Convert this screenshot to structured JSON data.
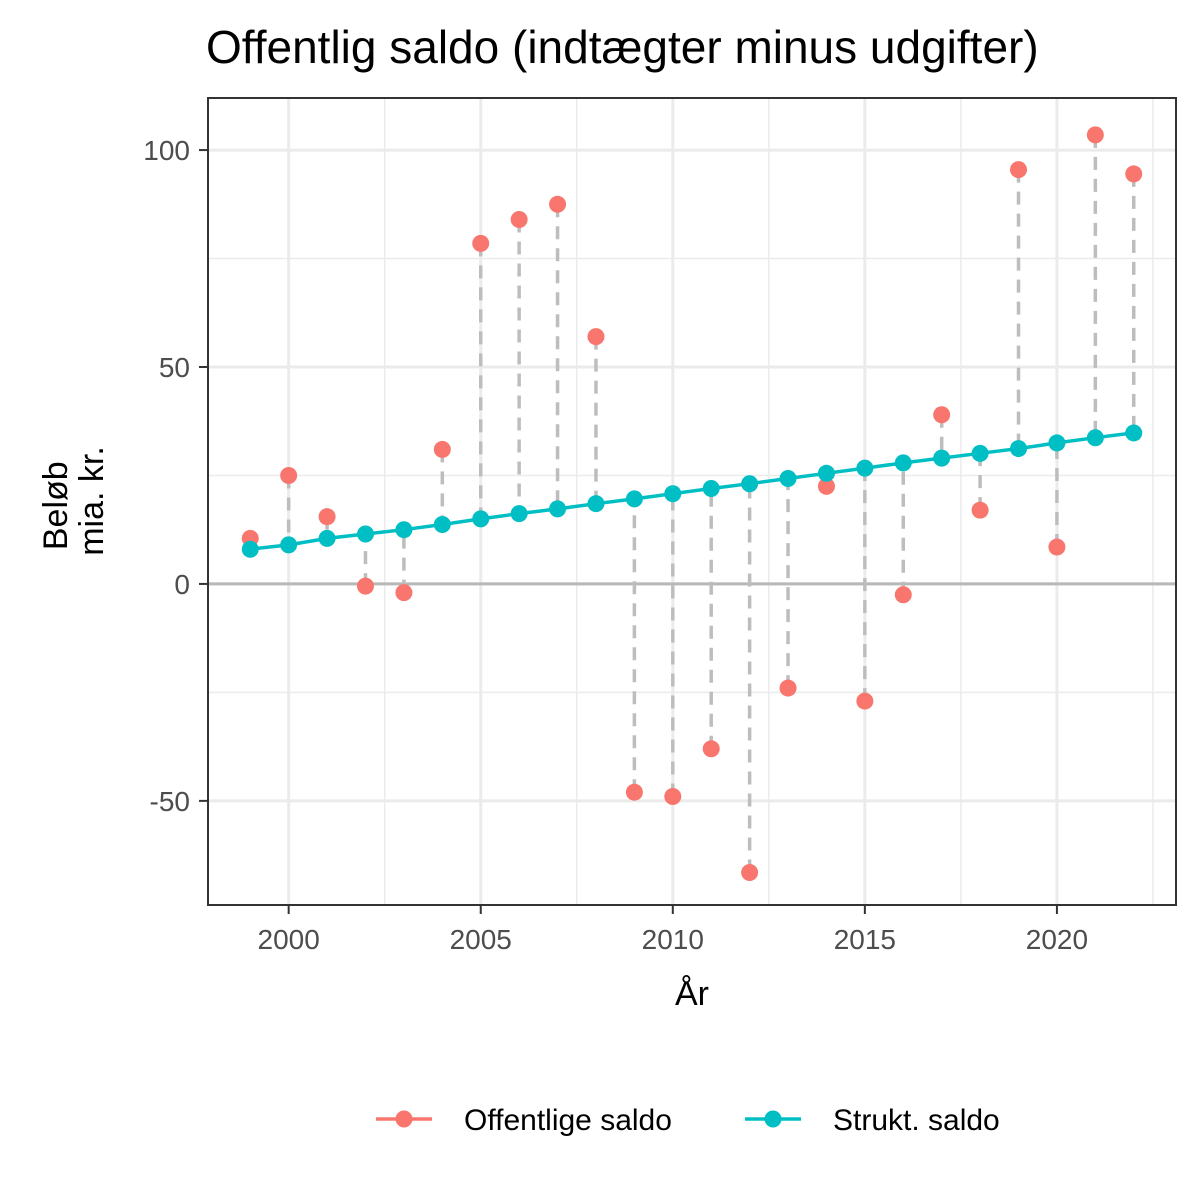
{
  "chart_data": {
    "type": "line",
    "title": "Offentlig saldo (indtægter minus udgifter)",
    "xlabel": "År",
    "ylabel": [
      "Beløb",
      "mia. kr."
    ],
    "xlim": [
      1997.9,
      2023.1
    ],
    "ylim": [
      -74,
      112
    ],
    "x_ticks": [
      2000,
      2005,
      2010,
      2015,
      2020
    ],
    "y_ticks": [
      -50,
      0,
      50,
      100
    ],
    "y_tick_labels": [
      "-50",
      "0",
      "50",
      "100"
    ],
    "grid": true,
    "legend_position": "bottom",
    "x": [
      1999,
      2000,
      2001,
      2002,
      2003,
      2004,
      2005,
      2006,
      2007,
      2008,
      2009,
      2010,
      2011,
      2012,
      2013,
      2014,
      2015,
      2016,
      2017,
      2018,
      2019,
      2020,
      2021,
      2022
    ],
    "series": [
      {
        "name": "Offentlige saldo",
        "color": "#F8766D",
        "marker": "point",
        "values": [
          10.5,
          25,
          15.5,
          -0.5,
          -2,
          31,
          78.5,
          84,
          87.5,
          57,
          -48,
          -49,
          -38,
          -66.5,
          -24,
          22.5,
          -27,
          -2.5,
          39,
          17,
          95.5,
          8.5,
          103.5,
          94.5
        ]
      },
      {
        "name": "Strukt. saldo",
        "color": "#00BFC4",
        "marker": "line+point",
        "values": [
          8,
          9,
          10.5,
          11.5,
          12.5,
          13.7,
          15,
          16.2,
          17.3,
          18.5,
          19.6,
          20.8,
          22,
          23.1,
          24.3,
          25.5,
          26.7,
          27.9,
          29,
          30.1,
          31.2,
          32.5,
          33.7,
          34.8
        ]
      }
    ],
    "annotations": {
      "gap_lines": "dashed vertical segments connecting Offentlige saldo and Strukt. saldo for each year",
      "gap_line_color": "#bdbdbd",
      "reference_line": 0
    }
  }
}
